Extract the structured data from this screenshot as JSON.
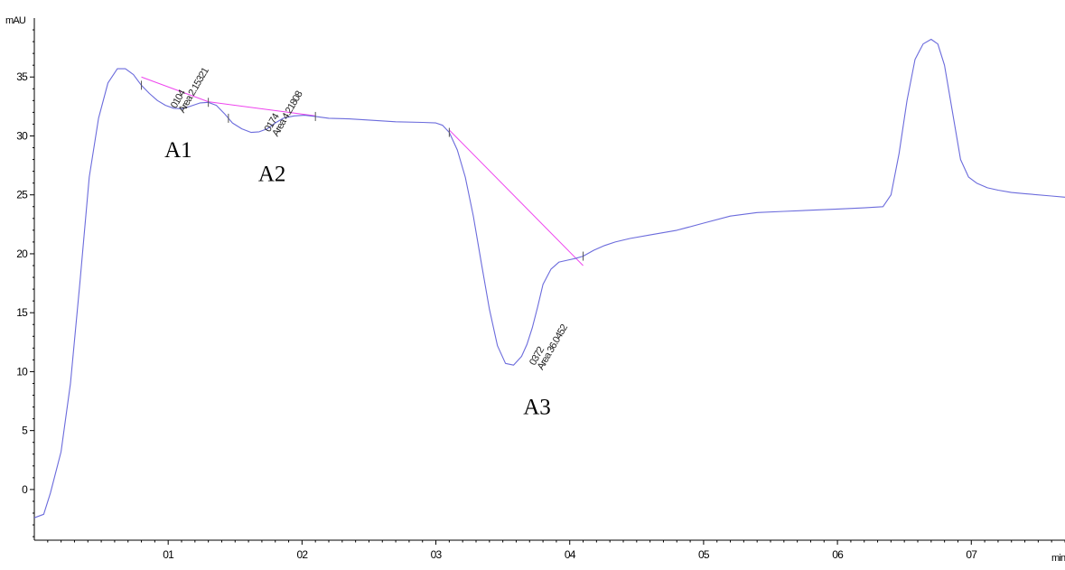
{
  "chart_data": {
    "type": "line",
    "title": "",
    "ylabel": "mAU",
    "xlabel": "min",
    "xlim": [
      0.0,
      0.77
    ],
    "ylim": [
      -4.3,
      40
    ],
    "x_ticks": [
      0.1,
      0.2,
      0.3,
      0.4,
      0.5,
      0.6,
      0.7
    ],
    "x_tick_labels": [
      "01",
      "02",
      "03",
      "04",
      "05",
      "06",
      "07"
    ],
    "y_ticks": [
      0,
      5,
      10,
      15,
      20,
      25,
      30,
      35
    ],
    "y_tick_labels": [
      "0",
      "5",
      "10",
      "15",
      "20",
      "25",
      "30",
      "35"
    ],
    "grid": false,
    "colors": {
      "trace": "#6b6bdc",
      "baseline": "#ee44ee",
      "axis": "#000000"
    },
    "series": [
      {
        "x": [
          0.0,
          0.007,
          0.012,
          0.02,
          0.027,
          0.034,
          0.041,
          0.048,
          0.055,
          0.062,
          0.068,
          0.074,
          0.08,
          0.086,
          0.092,
          0.098,
          0.104,
          0.11,
          0.116,
          0.124,
          0.13,
          0.136,
          0.142,
          0.148,
          0.155,
          0.162,
          0.168,
          0.174,
          0.18,
          0.186,
          0.194,
          0.202,
          0.21,
          0.22,
          0.235,
          0.25,
          0.27,
          0.29,
          0.3,
          0.305,
          0.31,
          0.316,
          0.322,
          0.328,
          0.334,
          0.34,
          0.346,
          0.352,
          0.358,
          0.364,
          0.368,
          0.372,
          0.376,
          0.38,
          0.386,
          0.392,
          0.398,
          0.404,
          0.41,
          0.418,
          0.426,
          0.434,
          0.445,
          0.46,
          0.48,
          0.5,
          0.52,
          0.54,
          0.56,
          0.58,
          0.6,
          0.62,
          0.634,
          0.64,
          0.646,
          0.652,
          0.658,
          0.664,
          0.67,
          0.675,
          0.68,
          0.686,
          0.692,
          0.698,
          0.704,
          0.712,
          0.72,
          0.73,
          0.74,
          0.76,
          0.77
        ],
        "y": [
          -2.4,
          -2.1,
          -0.3,
          3.2,
          9.0,
          17.5,
          26.5,
          31.5,
          34.5,
          35.7,
          35.7,
          35.2,
          34.3,
          33.6,
          33.0,
          32.6,
          32.35,
          32.3,
          32.5,
          32.8,
          32.85,
          32.6,
          31.9,
          31.1,
          30.6,
          30.3,
          30.35,
          30.6,
          31.1,
          31.5,
          31.7,
          31.75,
          31.65,
          31.5,
          31.45,
          31.35,
          31.2,
          31.15,
          31.1,
          30.9,
          30.3,
          28.8,
          26.5,
          23.2,
          19.2,
          15.3,
          12.2,
          10.7,
          10.55,
          11.3,
          12.3,
          13.7,
          15.5,
          17.4,
          18.7,
          19.3,
          19.45,
          19.6,
          19.8,
          20.3,
          20.7,
          21.0,
          21.3,
          21.6,
          22.0,
          22.6,
          23.2,
          23.5,
          23.6,
          23.7,
          23.8,
          23.9,
          24.0,
          25.0,
          28.5,
          33.0,
          36.5,
          37.8,
          38.2,
          37.8,
          36.0,
          32.0,
          28.0,
          26.5,
          26.0,
          25.6,
          25.4,
          25.2,
          25.1,
          24.9,
          24.8
        ]
      }
    ],
    "baseline_segments": [
      {
        "x": [
          0.08,
          0.13
        ],
        "y": [
          35.0,
          32.9
        ]
      },
      {
        "x": [
          0.13,
          0.21
        ],
        "y": [
          32.9,
          31.7
        ]
      },
      {
        "x": [
          0.31,
          0.41
        ],
        "y": [
          30.5,
          19.0
        ]
      }
    ],
    "peaks": [
      {
        "label": "A1",
        "rt": "0104",
        "area": "Area 2.15321",
        "x": 0.104,
        "y": 32.4
      },
      {
        "label": "A2",
        "rt": "0174",
        "area": "Area 4.21808",
        "x": 0.174,
        "y": 30.4
      },
      {
        "label": "A3",
        "rt": "0372",
        "area": "Area 36.0452",
        "x": 0.372,
        "y": 10.6
      }
    ],
    "marker_x": [
      0.08,
      0.13,
      0.145,
      0.21,
      0.31,
      0.41
    ]
  }
}
